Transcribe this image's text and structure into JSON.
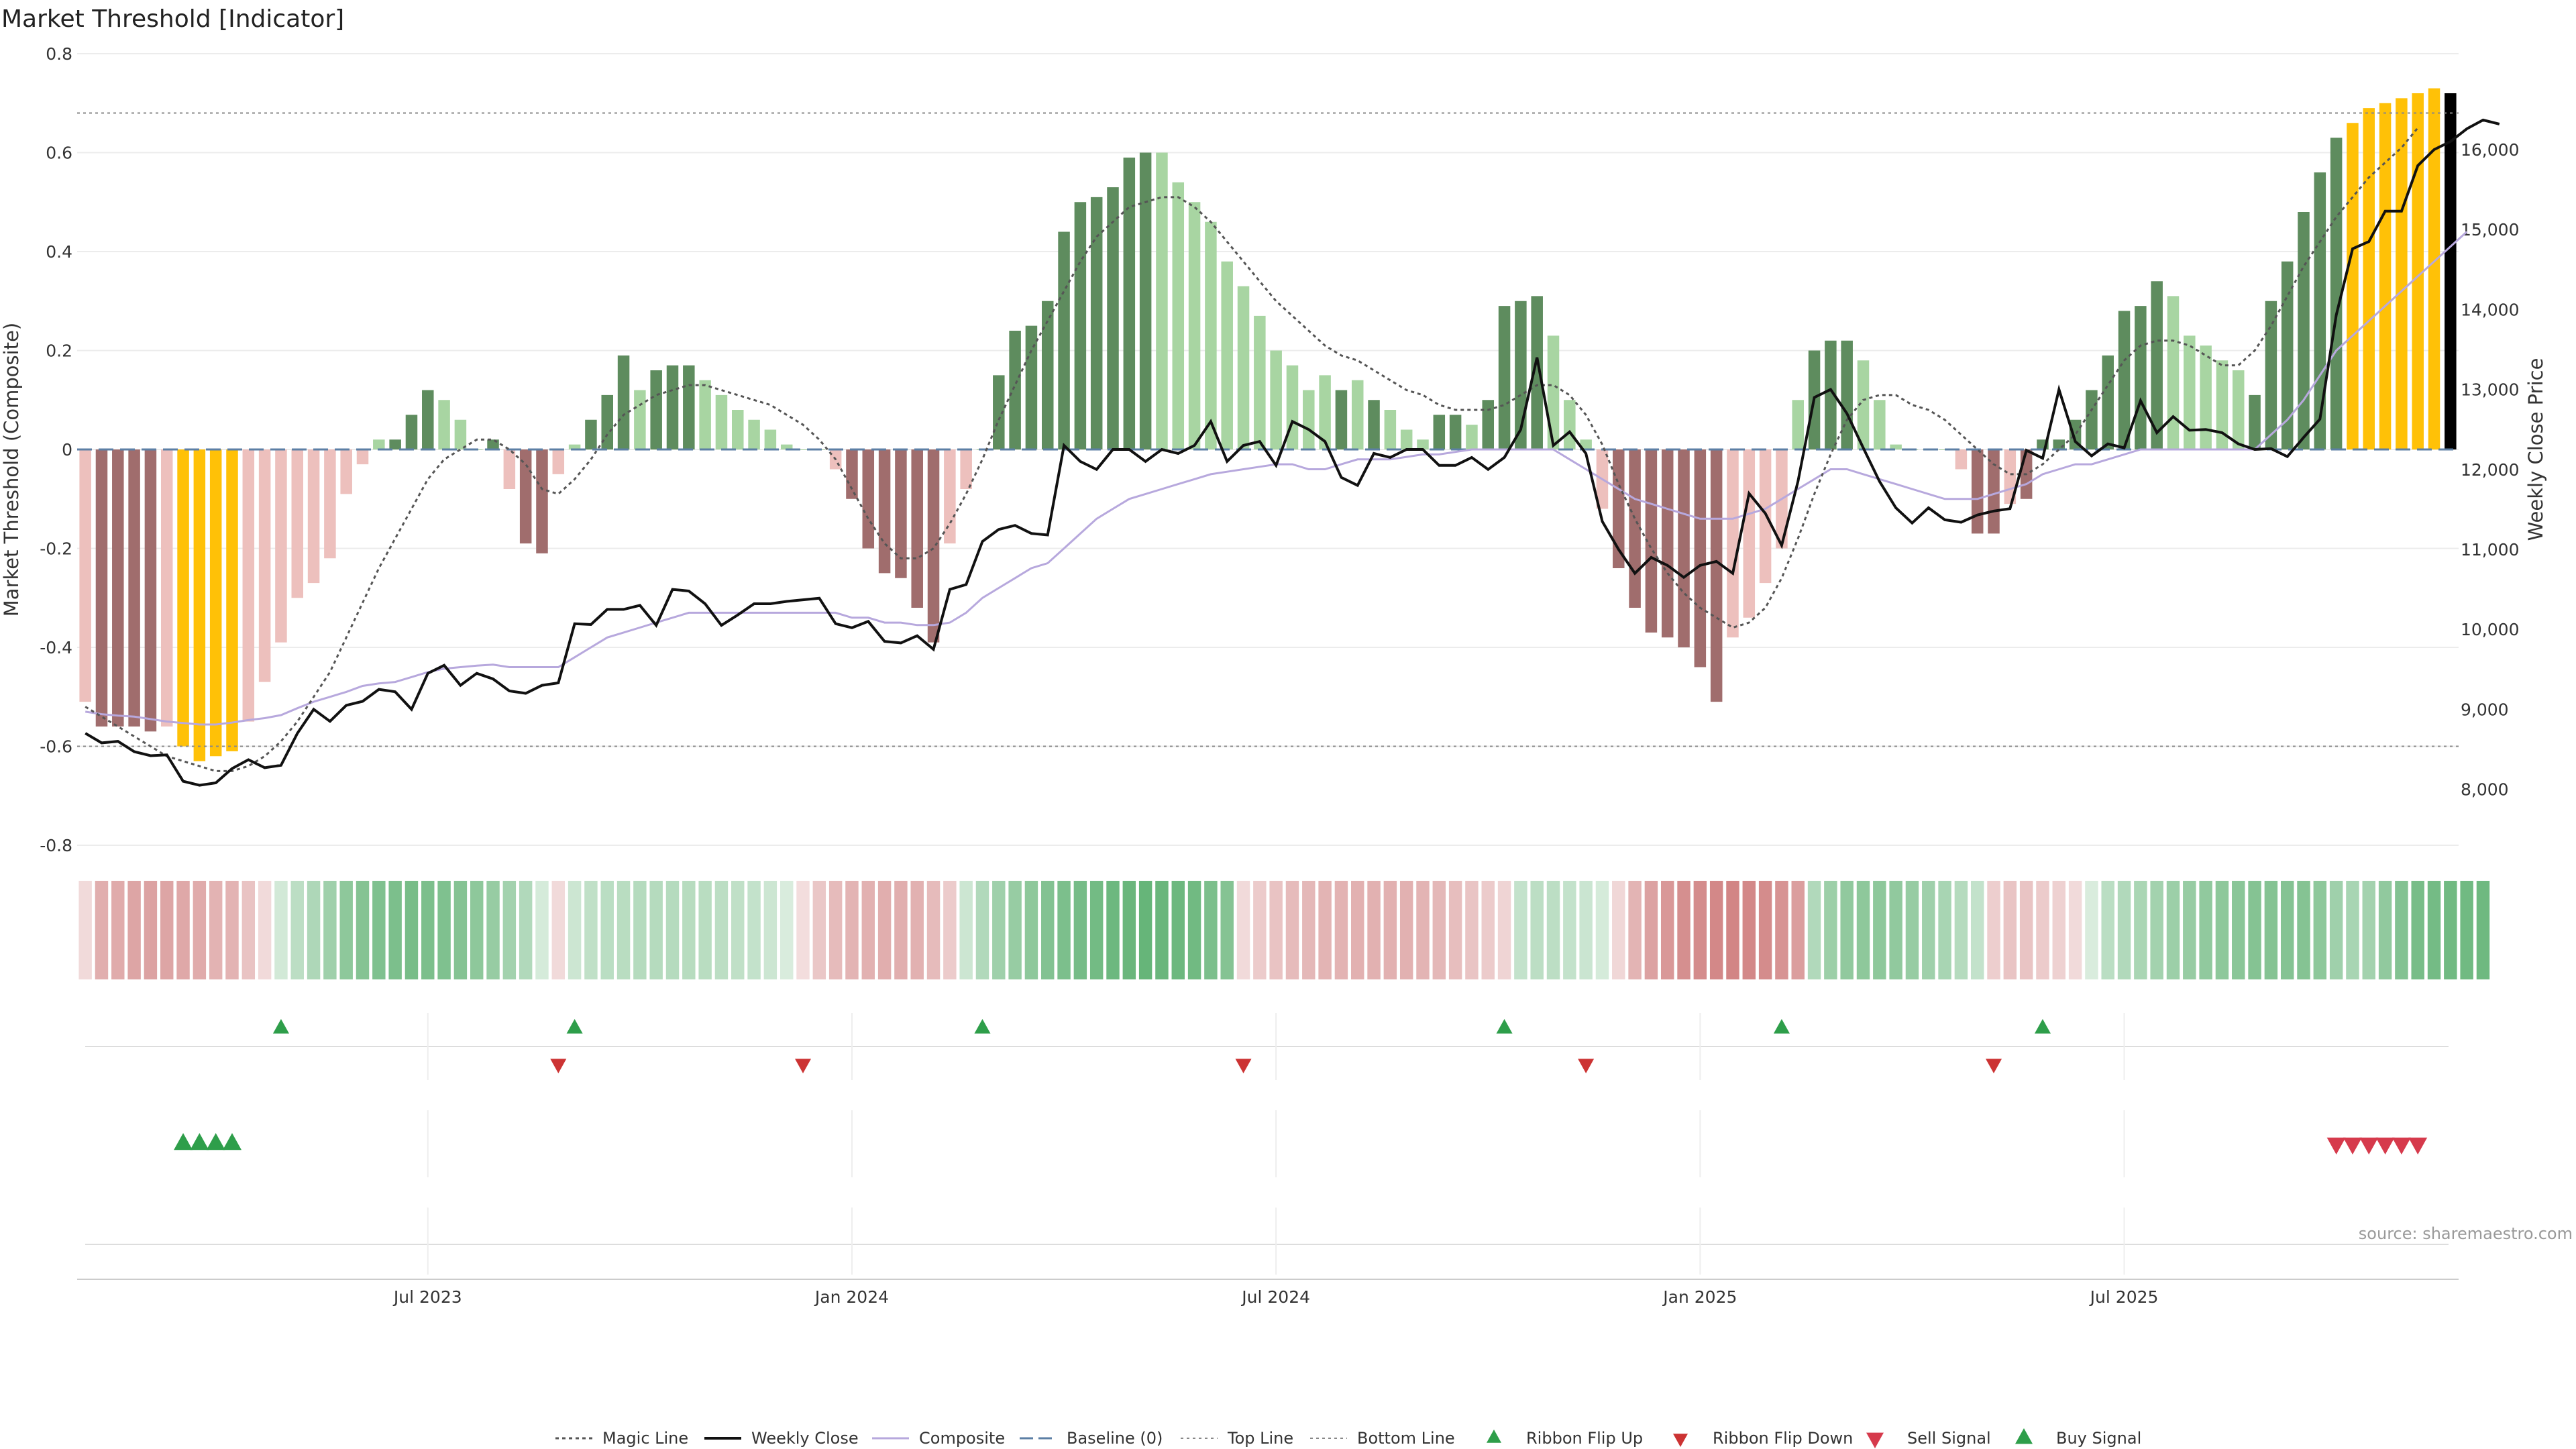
{
  "chart_data": {
    "type": "bar",
    "title": "Market Threshold [Indicator]",
    "ylabel": "Market Threshold (Composite)",
    "y2label": "Weekly Close Price",
    "ylim": [
      -0.8,
      0.8
    ],
    "y2lim": [
      7300,
      17200
    ],
    "yticks": [
      "-0.8",
      "-0.6",
      "-0.4",
      "-0.2",
      "0",
      "0.2",
      "0.4",
      "0.6",
      "0.8"
    ],
    "y2ticks": [
      "8,000",
      "9,000",
      "10,000",
      "11,000",
      "12,000",
      "13,000",
      "14,000",
      "15,000",
      "16,000"
    ],
    "xticks": [
      "Jul 2023",
      "Jan 2024",
      "Jul 2024",
      "Jan 2025",
      "Jul 2025"
    ],
    "top_line": 0.68,
    "bottom_line": -0.6,
    "baseline": 0,
    "composite": [
      -0.51,
      -0.56,
      -0.56,
      -0.56,
      -0.57,
      -0.56,
      -0.6,
      -0.63,
      -0.62,
      -0.61,
      -0.55,
      -0.47,
      -0.39,
      -0.3,
      -0.27,
      -0.22,
      -0.09,
      -0.03,
      0.02,
      0.02,
      0.07,
      0.12,
      0.1,
      0.06,
      0.0,
      0.02,
      -0.08,
      -0.19,
      -0.21,
      -0.05,
      0.01,
      0.06,
      0.11,
      0.19,
      0.12,
      0.16,
      0.17,
      0.17,
      0.14,
      0.11,
      0.08,
      0.06,
      0.04,
      0.01,
      0.0,
      0.0,
      -0.04,
      -0.1,
      -0.2,
      -0.25,
      -0.26,
      -0.32,
      -0.39,
      -0.19,
      -0.08,
      0.0,
      0.15,
      0.24,
      0.25,
      0.3,
      0.44,
      0.5,
      0.51,
      0.53,
      0.59,
      0.6,
      0.6,
      0.54,
      0.5,
      0.46,
      0.38,
      0.33,
      0.27,
      0.2,
      0.17,
      0.12,
      0.15,
      0.12,
      0.14,
      0.1,
      0.08,
      0.04,
      0.02,
      0.07,
      0.07,
      0.05,
      0.1,
      0.29,
      0.3,
      0.31,
      0.23,
      0.1,
      0.02,
      -0.12,
      -0.24,
      -0.32,
      -0.37,
      -0.38,
      -0.4,
      -0.44,
      -0.51,
      -0.38,
      -0.34,
      -0.27,
      -0.2,
      0.1,
      0.2,
      0.22,
      0.22,
      0.18,
      0.1,
      0.01,
      0.0,
      0.0,
      0.0,
      -0.04,
      -0.17,
      -0.17,
      -0.11,
      -0.1,
      0.02,
      0.02,
      0.06,
      0.12,
      0.19,
      0.28,
      0.29,
      0.34,
      0.31,
      0.23,
      0.21,
      0.18,
      0.16,
      0.11,
      0.3,
      0.38,
      0.48,
      0.56,
      0.63,
      0.66,
      0.69,
      0.7,
      0.71,
      0.72,
      0.73,
      0.72
    ],
    "bar_class": [
      "lr",
      "dr",
      "dr",
      "dr",
      "dr",
      "lr",
      "y",
      "y",
      "y",
      "y",
      "lr",
      "lr",
      "lr",
      "lr",
      "lr",
      "lr",
      "lr",
      "lr",
      "lg",
      "dg",
      "dg",
      "dg",
      "lg",
      "lg",
      "lg",
      "dg",
      "lr",
      "dr",
      "dr",
      "lr",
      "lg",
      "dg",
      "dg",
      "dg",
      "lg",
      "dg",
      "dg",
      "dg",
      "lg",
      "lg",
      "lg",
      "lg",
      "lg",
      "lg",
      "lg",
      "lg",
      "lr",
      "dr",
      "dr",
      "dr",
      "dr",
      "dr",
      "dr",
      "lr",
      "lr",
      "lg",
      "dg",
      "dg",
      "dg",
      "dg",
      "dg",
      "dg",
      "dg",
      "dg",
      "dg",
      "dg",
      "lg",
      "lg",
      "lg",
      "lg",
      "lg",
      "lg",
      "lg",
      "lg",
      "lg",
      "lg",
      "lg",
      "dg",
      "lg",
      "dg",
      "lg",
      "lg",
      "lg",
      "dg",
      "dg",
      "lg",
      "dg",
      "dg",
      "dg",
      "dg",
      "lg",
      "lg",
      "lg",
      "lr",
      "dr",
      "dr",
      "dr",
      "dr",
      "dr",
      "dr",
      "dr",
      "lr",
      "lr",
      "lr",
      "lr",
      "lg",
      "dg",
      "dg",
      "dg",
      "lg",
      "lg",
      "lg",
      "lg",
      "lg",
      "lg",
      "lr",
      "dr",
      "dr",
      "lr",
      "dr",
      "dg",
      "dg",
      "dg",
      "dg",
      "dg",
      "dg",
      "dg",
      "dg",
      "lg",
      "lg",
      "lg",
      "lg",
      "lg",
      "dg",
      "dg",
      "dg",
      "dg",
      "dg",
      "dg",
      "y",
      "y",
      "y",
      "y",
      "y",
      "y"
    ],
    "magic_line": [
      -0.52,
      -0.54,
      -0.56,
      -0.58,
      -0.6,
      -0.62,
      -0.63,
      -0.64,
      -0.65,
      -0.65,
      -0.64,
      -0.62,
      -0.59,
      -0.55,
      -0.5,
      -0.45,
      -0.38,
      -0.31,
      -0.24,
      -0.18,
      -0.12,
      -0.06,
      -0.02,
      0.0,
      0.02,
      0.02,
      0.0,
      -0.03,
      -0.08,
      -0.09,
      -0.06,
      -0.02,
      0.03,
      0.07,
      0.09,
      0.11,
      0.12,
      0.13,
      0.13,
      0.12,
      0.11,
      0.1,
      0.09,
      0.07,
      0.05,
      0.02,
      -0.02,
      -0.08,
      -0.14,
      -0.19,
      -0.22,
      -0.22,
      -0.2,
      -0.15,
      -0.09,
      -0.02,
      0.06,
      0.13,
      0.2,
      0.26,
      0.32,
      0.38,
      0.43,
      0.46,
      0.49,
      0.5,
      0.51,
      0.51,
      0.49,
      0.46,
      0.42,
      0.38,
      0.34,
      0.3,
      0.27,
      0.24,
      0.21,
      0.19,
      0.18,
      0.16,
      0.14,
      0.12,
      0.11,
      0.09,
      0.08,
      0.08,
      0.08,
      0.09,
      0.11,
      0.13,
      0.13,
      0.11,
      0.07,
      0.01,
      -0.07,
      -0.14,
      -0.2,
      -0.25,
      -0.29,
      -0.32,
      -0.34,
      -0.36,
      -0.35,
      -0.32,
      -0.26,
      -0.18,
      -0.09,
      -0.01,
      0.06,
      0.1,
      0.11,
      0.11,
      0.09,
      0.08,
      0.06,
      0.03,
      0.0,
      -0.03,
      -0.05,
      -0.05,
      -0.03,
      0.0,
      0.03,
      0.08,
      0.13,
      0.18,
      0.21,
      0.22,
      0.22,
      0.21,
      0.19,
      0.17,
      0.17,
      0.2,
      0.25,
      0.31,
      0.37,
      0.42,
      0.47,
      0.51,
      0.55,
      0.58,
      0.61,
      0.65
    ],
    "weekly_close": [
      8700,
      8580,
      8600,
      8470,
      8420,
      8430,
      8100,
      8050,
      8080,
      8260,
      8370,
      8270,
      8300,
      8700,
      9000,
      8850,
      9050,
      9100,
      9250,
      9220,
      9000,
      9450,
      9550,
      9300,
      9450,
      9380,
      9230,
      9200,
      9300,
      9330,
      10070,
      10060,
      10250,
      10250,
      10300,
      10050,
      10500,
      10480,
      10320,
      10050,
      10180,
      10320,
      10320,
      10350,
      10370,
      10390,
      10070,
      10020,
      10100,
      9850,
      9830,
      9920,
      9750,
      10500,
      10560,
      11100,
      11250,
      11300,
      11200,
      11180,
      12300,
      12100,
      12000,
      12250,
      12250,
      12100,
      12250,
      12200,
      12300,
      12600,
      12100,
      12300,
      12350,
      12050,
      12600,
      12500,
      12350,
      11900,
      11800,
      12200,
      12150,
      12250,
      12250,
      12050,
      12050,
      12150,
      12000,
      12150,
      12500,
      13400,
      12300,
      12470,
      12200,
      11350,
      11000,
      10700,
      10900,
      10800,
      10650,
      10800,
      10850,
      10700,
      11700,
      11450,
      11050,
      11850,
      12900,
      13000,
      12700,
      12270,
      11850,
      11520,
      11330,
      11520,
      11370,
      11340,
      11430,
      11480,
      11510,
      12240,
      12140,
      13000,
      12350,
      12170,
      12320,
      12270,
      12860,
      12460,
      12660,
      12490,
      12500,
      12460,
      12320,
      12250,
      12260,
      12160,
      12400,
      12630,
      13930,
      14760,
      14850,
      15230,
      15230,
      15800,
      16000,
      16100,
      16260,
      16370,
      16320
    ],
    "composite_ma": [
      -0.53,
      -0.535,
      -0.538,
      -0.54,
      -0.545,
      -0.55,
      -0.553,
      -0.556,
      -0.556,
      -0.552,
      -0.547,
      -0.543,
      -0.537,
      -0.523,
      -0.51,
      -0.5,
      -0.49,
      -0.478,
      -0.473,
      -0.47,
      -0.46,
      -0.45,
      -0.443,
      -0.44,
      -0.437,
      -0.435,
      -0.44,
      -0.44,
      -0.44,
      -0.44,
      -0.42,
      -0.4,
      -0.38,
      -0.37,
      -0.36,
      -0.35,
      -0.34,
      -0.33,
      -0.33,
      -0.33,
      -0.33,
      -0.33,
      -0.33,
      -0.33,
      -0.33,
      -0.33,
      -0.33,
      -0.34,
      -0.34,
      -0.35,
      -0.35,
      -0.355,
      -0.355,
      -0.35,
      -0.33,
      -0.3,
      -0.28,
      -0.26,
      -0.24,
      -0.23,
      -0.2,
      -0.17,
      -0.14,
      -0.12,
      -0.1,
      -0.09,
      -0.08,
      -0.07,
      -0.06,
      -0.05,
      -0.045,
      -0.04,
      -0.035,
      -0.03,
      -0.03,
      -0.04,
      -0.04,
      -0.03,
      -0.02,
      -0.02,
      -0.02,
      -0.015,
      -0.01,
      -0.01,
      -0.005,
      0.0,
      0.0,
      0.0,
      0.0,
      0.0,
      0.0,
      -0.02,
      -0.04,
      -0.06,
      -0.08,
      -0.1,
      -0.11,
      -0.12,
      -0.13,
      -0.14,
      -0.14,
      -0.14,
      -0.13,
      -0.12,
      -0.1,
      -0.08,
      -0.06,
      -0.04,
      -0.04,
      -0.05,
      -0.06,
      -0.07,
      -0.08,
      -0.09,
      -0.1,
      -0.1,
      -0.1,
      -0.09,
      -0.08,
      -0.07,
      -0.05,
      -0.04,
      -0.03,
      -0.03,
      -0.02,
      -0.01,
      0.0,
      0.0,
      0.0,
      0.0,
      0.0,
      0.0,
      0.0,
      0.0,
      0.03,
      0.06,
      0.1,
      0.15,
      0.2,
      0.23,
      0.26,
      0.29,
      0.32,
      0.35,
      0.38,
      0.41,
      0.44
    ],
    "ribbon": [
      -0.1,
      -0.38,
      -0.4,
      -0.44,
      -0.46,
      -0.44,
      -0.42,
      -0.4,
      -0.35,
      -0.35,
      -0.25,
      -0.1,
      0.12,
      0.24,
      0.32,
      0.4,
      0.5,
      0.55,
      0.58,
      0.6,
      0.62,
      0.6,
      0.58,
      0.55,
      0.5,
      0.45,
      0.38,
      0.3,
      0.1,
      -0.1,
      0.15,
      0.22,
      0.25,
      0.26,
      0.28,
      0.28,
      0.28,
      0.27,
      0.26,
      0.24,
      0.22,
      0.2,
      0.15,
      0.08,
      -0.08,
      -0.22,
      -0.3,
      -0.34,
      -0.36,
      -0.38,
      -0.38,
      -0.36,
      -0.3,
      -0.2,
      0.15,
      0.3,
      0.4,
      0.45,
      0.5,
      0.56,
      0.6,
      0.63,
      0.65,
      0.68,
      0.7,
      0.72,
      0.7,
      0.68,
      0.66,
      0.6,
      0.55,
      -0.1,
      -0.2,
      -0.25,
      -0.3,
      -0.32,
      -0.34,
      -0.35,
      -0.36,
      -0.36,
      -0.36,
      -0.36,
      -0.34,
      -0.32,
      -0.28,
      -0.24,
      -0.2,
      -0.14,
      0.2,
      0.24,
      0.24,
      0.2,
      0.16,
      0.1,
      -0.12,
      -0.34,
      -0.46,
      -0.52,
      -0.58,
      -0.6,
      -0.62,
      -0.64,
      -0.62,
      -0.6,
      -0.55,
      -0.48,
      0.3,
      0.42,
      0.48,
      0.5,
      0.5,
      0.48,
      0.45,
      0.4,
      0.35,
      0.28,
      0.2,
      -0.18,
      -0.24,
      -0.24,
      -0.2,
      -0.16,
      -0.1,
      0.08,
      0.25,
      0.3,
      0.34,
      0.38,
      0.42,
      0.45,
      0.48,
      0.5,
      0.52,
      0.55,
      0.55,
      0.55,
      0.55,
      0.5,
      0.4,
      0.35,
      0.38,
      0.48,
      0.56,
      0.62,
      0.64,
      0.66,
      0.66,
      0.67
    ],
    "ribbon_flip_up_index": [
      12,
      30,
      55,
      87,
      104,
      120
    ],
    "ribbon_flip_down_index": [
      29,
      44,
      71,
      92,
      117
    ],
    "buy_signal_index": [
      6,
      7,
      8,
      9
    ],
    "sell_signal_index": [
      138,
      139,
      140,
      141,
      142,
      143
    ],
    "legend": [
      {
        "key": "magic",
        "label": "Magic Line"
      },
      {
        "key": "close",
        "label": "Weekly Close"
      },
      {
        "key": "composite",
        "label": "Composite"
      },
      {
        "key": "baseline",
        "label": "Baseline (0)"
      },
      {
        "key": "top",
        "label": "Top Line"
      },
      {
        "key": "bottom",
        "label": "Bottom Line"
      },
      {
        "key": "flip-up",
        "label": "Ribbon Flip Up"
      },
      {
        "key": "flip-down",
        "label": "Ribbon Flip Down"
      },
      {
        "key": "sell",
        "label": "Sell Signal"
      },
      {
        "key": "buy",
        "label": "Buy Signal"
      }
    ],
    "legend_position": "bottom-center",
    "grid": true,
    "colors": {
      "dark_green": "#5e8c5e",
      "light_green": "#a8d5a2",
      "dark_red": "#a06d6d",
      "light_red": "#edc0bd",
      "yellow": "#ffc107",
      "close": "#111111",
      "composite_ma": "#b7a8dd",
      "magic": "#555555",
      "baseline": "#5c7fa5",
      "flip_up": "#2e9e4a",
      "flip_down": "#cc3333",
      "sell": "#d63a4c",
      "buy": "#2e9e4a"
    }
  },
  "source": "source: sharemaestro.com"
}
